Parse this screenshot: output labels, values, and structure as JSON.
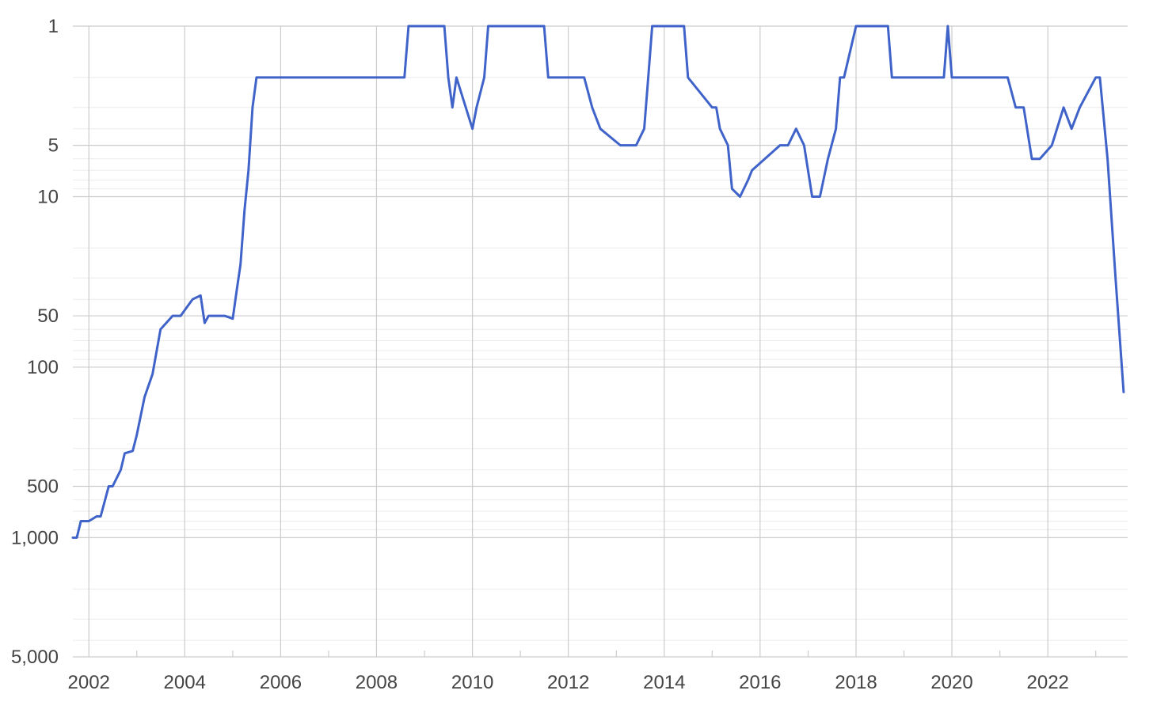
{
  "chart_data": {
    "type": "line",
    "title": "",
    "xlabel": "",
    "ylabel": "",
    "y_scale": "log",
    "y_reversed": true,
    "ylim": [
      1,
      5000
    ],
    "xlim": [
      "2001-09-01",
      "2023-09-01"
    ],
    "grid": true,
    "legend": "none",
    "y_ticks": [
      1,
      5,
      10,
      50,
      100,
      500,
      1000,
      5000
    ],
    "y_tick_labels": [
      "1",
      "5",
      "10",
      "50",
      "100",
      "500",
      "1,000",
      "5,000"
    ],
    "x_ticks": [
      "2002-01-01",
      "2004-01-01",
      "2006-01-01",
      "2008-01-01",
      "2010-01-01",
      "2012-01-01",
      "2014-01-01",
      "2016-01-01",
      "2018-01-01",
      "2020-01-01",
      "2022-01-01"
    ],
    "x_tick_labels": [
      "2002",
      "2004",
      "2006",
      "2008",
      "2010",
      "2012",
      "2014",
      "2016",
      "2018",
      "2020",
      "2022"
    ],
    "colors": {
      "line": "#3f63c9",
      "grid_major": "#cccccc",
      "grid_minor": "#ebebeb",
      "text": "#444444"
    },
    "series": [
      {
        "x": [
          "2001-09-01",
          "2001-10-01",
          "2001-11-01",
          "2002-01-01",
          "2002-03-01",
          "2002-04-01",
          "2002-06-01",
          "2002-07-01",
          "2002-09-01",
          "2002-10-01",
          "2002-12-01",
          "2003-01-01",
          "2003-03-01",
          "2003-05-01",
          "2003-07-01",
          "2003-10-01",
          "2003-12-01",
          "2004-03-01",
          "2004-05-01",
          "2004-06-01",
          "2004-07-01",
          "2004-08-01",
          "2004-09-01",
          "2004-11-01",
          "2005-01-01",
          "2005-02-01",
          "2005-03-01",
          "2005-04-01",
          "2005-05-01",
          "2005-06-01",
          "2005-07-01",
          "2005-08-01",
          "2008-08-01",
          "2008-09-01",
          "2009-06-01",
          "2009-07-01",
          "2009-08-01",
          "2009-09-01",
          "2010-01-01",
          "2010-02-01",
          "2010-04-01",
          "2010-05-01",
          "2010-06-01",
          "2011-07-01",
          "2011-08-01",
          "2012-05-01",
          "2012-07-01",
          "2012-09-01",
          "2013-02-01",
          "2013-04-01",
          "2013-06-01",
          "2013-08-01",
          "2013-09-01",
          "2013-10-01",
          "2014-06-01",
          "2014-07-01",
          "2015-01-01",
          "2015-02-01",
          "2015-03-01",
          "2015-05-01",
          "2015-06-01",
          "2015-08-01",
          "2015-10-01",
          "2015-11-01",
          "2016-06-01",
          "2016-08-01",
          "2016-10-01",
          "2016-12-01",
          "2017-02-01",
          "2017-04-01",
          "2017-06-01",
          "2017-08-01",
          "2017-09-01",
          "2017-10-01",
          "2018-01-01",
          "2018-02-01",
          "2018-04-01",
          "2018-06-01",
          "2018-08-01",
          "2018-09-01",
          "2018-10-01",
          "2019-11-01",
          "2019-12-01",
          "2020-01-01",
          "2021-03-01",
          "2021-05-01",
          "2021-07-01",
          "2021-09-01",
          "2021-11-01",
          "2022-02-01",
          "2022-05-01",
          "2022-07-01",
          "2022-09-01",
          "2023-01-01",
          "2023-02-01",
          "2023-04-01",
          "2023-06-01",
          "2023-08-01"
        ],
        "y": [
          1000,
          1000,
          800,
          800,
          750,
          750,
          500,
          500,
          400,
          320,
          310,
          250,
          150,
          110,
          60,
          50,
          50,
          40,
          38,
          55,
          50,
          50,
          50,
          50,
          52,
          35,
          25,
          12,
          7,
          3,
          2,
          2,
          2,
          1,
          1,
          2,
          3,
          2,
          4,
          3,
          2,
          1,
          1,
          1,
          2,
          2,
          3,
          4,
          5,
          5,
          5,
          4,
          2,
          1,
          1,
          2,
          3,
          3,
          4,
          5,
          9,
          10,
          8,
          7,
          5,
          5,
          4,
          5,
          10,
          10,
          6,
          4,
          2,
          2,
          1,
          1,
          1,
          1,
          1,
          1,
          2,
          2,
          1,
          2,
          2,
          3,
          3,
          6,
          6,
          5,
          3,
          4,
          3,
          2,
          2,
          6,
          30,
          140
        ]
      }
    ]
  }
}
